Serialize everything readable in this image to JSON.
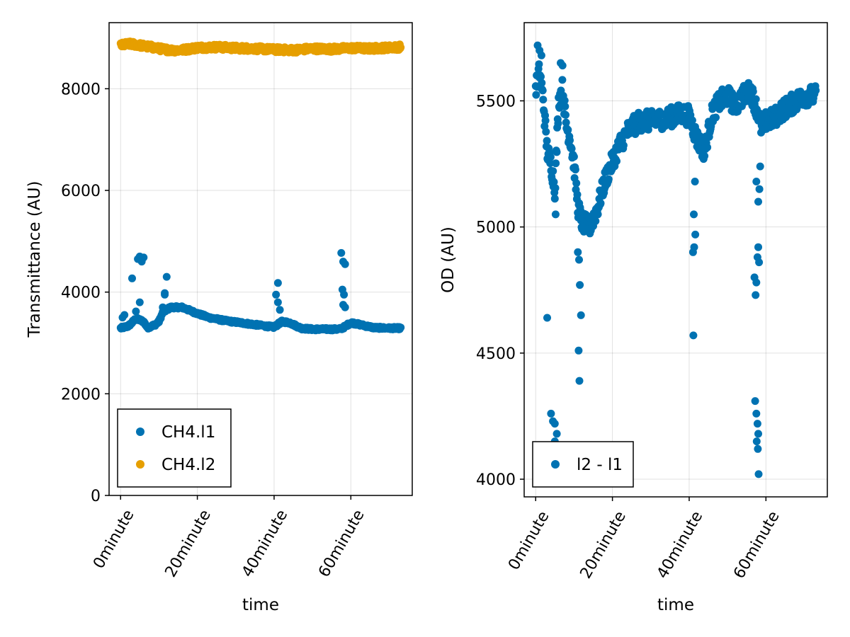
{
  "chart_data": [
    {
      "type": "scatter",
      "xlabel": "time",
      "ylabel": "Transmittance (AU)",
      "x_unit": "minute",
      "xlim": [
        -3,
        76
      ],
      "ylim": [
        0,
        9300
      ],
      "x_ticks": [
        0,
        20,
        40,
        60
      ],
      "x_tick_labels": [
        "0minute",
        "20minute",
        "40minute",
        "60minute"
      ],
      "y_ticks": [
        0,
        2000,
        4000,
        6000,
        8000
      ],
      "y_tick_labels": [
        "0",
        "2000",
        "4000",
        "6000",
        "8000"
      ],
      "grid": true,
      "legend_position": "bottom-left",
      "series": [
        {
          "name": "CH4.l1",
          "color": "#0072b2",
          "trend": [
            [
              0,
              3290
            ],
            [
              2,
              3330
            ],
            [
              3,
              3400
            ],
            [
              4,
              3480
            ],
            [
              6,
              3420
            ],
            [
              7,
              3300
            ],
            [
              9,
              3360
            ],
            [
              10,
              3420
            ],
            [
              11,
              3600
            ],
            [
              13,
              3700
            ],
            [
              16,
              3700
            ],
            [
              18,
              3640
            ],
            [
              20,
              3580
            ],
            [
              23,
              3500
            ],
            [
              27,
              3440
            ],
            [
              32,
              3390
            ],
            [
              37,
              3340
            ],
            [
              40,
              3310
            ],
            [
              42,
              3420
            ],
            [
              44,
              3400
            ],
            [
              47,
              3290
            ],
            [
              50,
              3270
            ],
            [
              57,
              3270
            ],
            [
              58,
              3300
            ],
            [
              60,
              3400
            ],
            [
              63,
              3350
            ],
            [
              66,
              3300
            ],
            [
              70,
              3290
            ],
            [
              73,
              3290
            ]
          ],
          "excursions": [
            [
              0.5,
              3500
            ],
            [
              1,
              3550
            ],
            [
              3,
              4270
            ],
            [
              4,
              3620
            ],
            [
              4.5,
              4650
            ],
            [
              5,
              4700
            ],
            [
              5.5,
              4600
            ],
            [
              6,
              4680
            ],
            [
              5,
              3800
            ],
            [
              11,
              3700
            ],
            [
              11.5,
              3980
            ],
            [
              12,
              4300
            ],
            [
              11.5,
              3950
            ],
            [
              40.5,
              3950
            ],
            [
              41,
              4180
            ],
            [
              41,
              3800
            ],
            [
              41.5,
              3650
            ],
            [
              57.5,
              4770
            ],
            [
              58,
              4600
            ],
            [
              58.5,
              4550
            ],
            [
              57.8,
              4050
            ],
            [
              58.2,
              3950
            ],
            [
              58,
              3750
            ],
            [
              58.5,
              3700
            ]
          ]
        },
        {
          "name": "CH4.l2",
          "color": "#e69f00",
          "trend": [
            [
              0,
              8850
            ],
            [
              2,
              8880
            ],
            [
              4,
              8870
            ],
            [
              6,
              8840
            ],
            [
              8,
              8820
            ],
            [
              10,
              8790
            ],
            [
              13,
              8760
            ],
            [
              16,
              8760
            ],
            [
              20,
              8810
            ],
            [
              25,
              8820
            ],
            [
              30,
              8800
            ],
            [
              35,
              8790
            ],
            [
              40,
              8770
            ],
            [
              45,
              8760
            ],
            [
              50,
              8790
            ],
            [
              55,
              8780
            ],
            [
              60,
              8800
            ],
            [
              65,
              8790
            ],
            [
              70,
              8810
            ],
            [
              73,
              8820
            ]
          ],
          "excursions": []
        }
      ]
    },
    {
      "type": "scatter",
      "xlabel": "time",
      "ylabel": "OD (AU)",
      "x_unit": "minute",
      "xlim": [
        -3,
        76
      ],
      "ylim": [
        3930,
        5810
      ],
      "x_ticks": [
        0,
        20,
        40,
        60
      ],
      "x_tick_labels": [
        "0minute",
        "20minute",
        "40minute",
        "60minute"
      ],
      "y_ticks": [
        4000,
        4500,
        5000,
        5500
      ],
      "y_tick_labels": [
        "4000",
        "4500",
        "5000",
        "5500"
      ],
      "grid": true,
      "legend_position": "bottom-left",
      "series": [
        {
          "name": "l2 - l1",
          "color": "#0072b2",
          "trend": [
            [
              0,
              5550
            ],
            [
              1,
              5620
            ],
            [
              2,
              5500
            ],
            [
              3,
              5300
            ],
            [
              4,
              5250
            ],
            [
              5,
              5150
            ],
            [
              6,
              5500
            ],
            [
              7,
              5550
            ],
            [
              8,
              5400
            ],
            [
              9,
              5350
            ],
            [
              10,
              5250
            ],
            [
              11,
              5080
            ],
            [
              12,
              5020
            ],
            [
              14,
              5000
            ],
            [
              16,
              5070
            ],
            [
              18,
              5180
            ],
            [
              20,
              5260
            ],
            [
              22,
              5330
            ],
            [
              24,
              5380
            ],
            [
              27,
              5420
            ],
            [
              30,
              5420
            ],
            [
              34,
              5430
            ],
            [
              38,
              5450
            ],
            [
              40,
              5440
            ],
            [
              42,
              5350
            ],
            [
              44,
              5300
            ],
            [
              46,
              5450
            ],
            [
              48,
              5500
            ],
            [
              50,
              5520
            ],
            [
              52,
              5480
            ],
            [
              54,
              5520
            ],
            [
              56,
              5540
            ],
            [
              58,
              5450
            ],
            [
              59,
              5380
            ],
            [
              60,
              5420
            ],
            [
              62,
              5430
            ],
            [
              64,
              5460
            ],
            [
              66,
              5480
            ],
            [
              68,
              5500
            ],
            [
              70,
              5520
            ],
            [
              73,
              5520
            ]
          ],
          "excursions": [
            [
              0.5,
              5720
            ],
            [
              1,
              5700
            ],
            [
              1.5,
              5680
            ],
            [
              6.5,
              5650
            ],
            [
              7,
              5640
            ],
            [
              3,
              4640
            ],
            [
              4,
              4260
            ],
            [
              4.5,
              4230
            ],
            [
              5,
              4220
            ],
            [
              5.5,
              4180
            ],
            [
              5,
              4150
            ],
            [
              5.2,
              5050
            ],
            [
              11,
              4900
            ],
            [
              11.3,
              4870
            ],
            [
              11.5,
              4770
            ],
            [
              11.8,
              4650
            ],
            [
              11.2,
              4510
            ],
            [
              11.4,
              4390
            ],
            [
              41,
              4900
            ],
            [
              41.2,
              5050
            ],
            [
              41.5,
              5180
            ],
            [
              41.3,
              4920
            ],
            [
              41.1,
              4570
            ],
            [
              41.6,
              4970
            ],
            [
              57,
              4800
            ],
            [
              57.3,
              4730
            ],
            [
              57.5,
              4780
            ],
            [
              57.8,
              4880
            ],
            [
              58.2,
              4860
            ],
            [
              58,
              4920
            ],
            [
              57.5,
              5180
            ],
            [
              58,
              5100
            ],
            [
              58.5,
              5240
            ],
            [
              58.3,
              5150
            ],
            [
              57.2,
              4310
            ],
            [
              57.5,
              4260
            ],
            [
              57.8,
              4220
            ],
            [
              58,
              4180
            ],
            [
              57.6,
              4150
            ],
            [
              57.9,
              4120
            ],
            [
              58.1,
              4020
            ]
          ]
        }
      ]
    }
  ]
}
